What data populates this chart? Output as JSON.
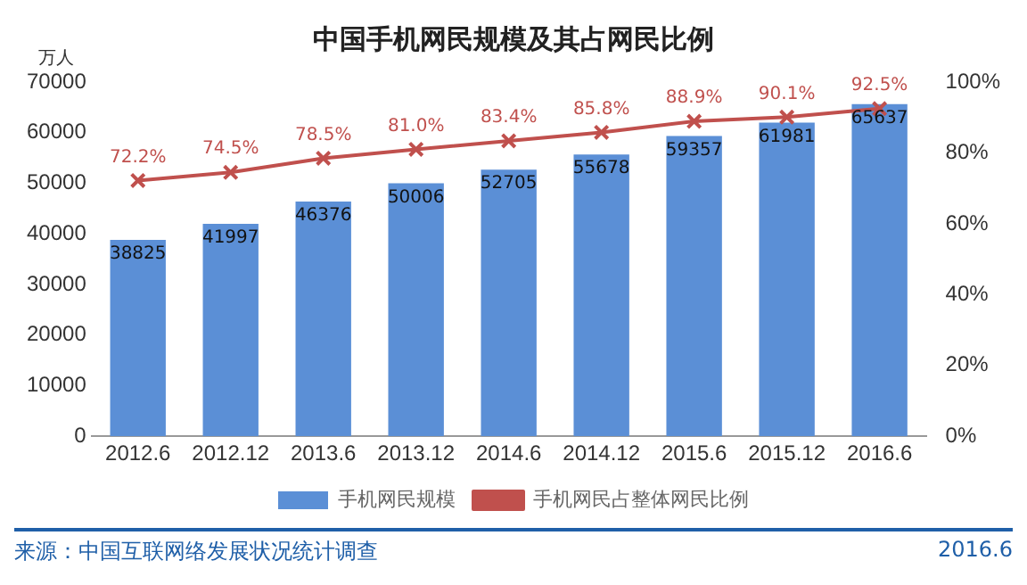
{
  "chart_data": {
    "type": "bar",
    "title": "中国手机网民规模及其占网民比例",
    "ylabel": "万人",
    "categories": [
      "2012.6",
      "2012.12",
      "2013.6",
      "2013.12",
      "2014.6",
      "2014.12",
      "2015.6",
      "2015.12",
      "2016.6"
    ],
    "series": [
      {
        "name": "手机网民规模",
        "color": "#5b8fd6",
        "values": [
          38825,
          41997,
          46376,
          50006,
          52705,
          55678,
          59357,
          61981,
          65637
        ]
      },
      {
        "name": "手机网民占整体网民比例",
        "type": "line",
        "axis": "y2",
        "color": "#c0504d",
        "marker": "cross",
        "values": [
          72.2,
          74.5,
          78.5,
          81.0,
          83.4,
          85.8,
          88.9,
          90.1,
          92.5
        ],
        "value_labels": [
          "72.2%",
          "74.5%",
          "78.5%",
          "81.0%",
          "83.4%",
          "85.8%",
          "88.9%",
          "90.1%",
          "92.5%"
        ]
      }
    ],
    "data_labels": true,
    "ylim": [
      0,
      70000
    ],
    "yticks": [
      0,
      10000,
      20000,
      30000,
      40000,
      50000,
      60000,
      70000
    ],
    "y2lim": [
      0,
      100
    ],
    "y2ticks": [
      {
        "value": 0,
        "label": "0%"
      },
      {
        "value": 20,
        "label": "20%"
      },
      {
        "value": 40,
        "label": "40%"
      },
      {
        "value": 60,
        "label": "60%"
      },
      {
        "value": 80,
        "label": "80%"
      },
      {
        "value": 100,
        "label": "100%"
      }
    ],
    "grid": false,
    "legend": "bottom",
    "annotations": [
      "来源：中国互联网络发展状况统计调查",
      "2016.6"
    ]
  }
}
